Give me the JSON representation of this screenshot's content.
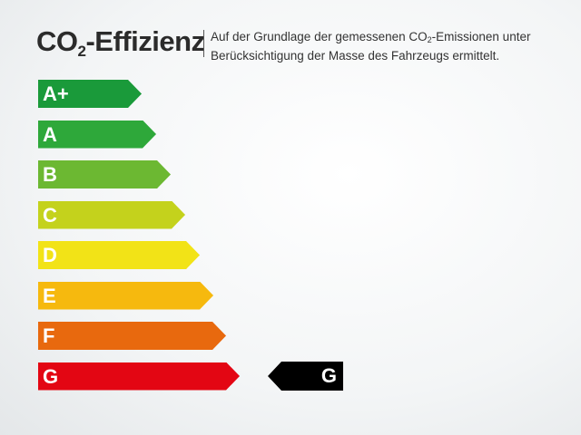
{
  "title": {
    "prefix": "CO",
    "sub": "2",
    "suffix": "-Effizienz"
  },
  "description": {
    "line1_pre": "Auf der Grundlage der gemessenen CO",
    "line1_sub": "2",
    "line1_post": "-Emissionen unter",
    "line2": "Berücksichtigung der Masse des Fahrzeugs ermittelt."
  },
  "classes": [
    {
      "label": "A+",
      "color": "#1a9a3a"
    },
    {
      "label": "A",
      "color": "#2ea83a"
    },
    {
      "label": "B",
      "color": "#6cb832"
    },
    {
      "label": "C",
      "color": "#c4d21c"
    },
    {
      "label": "D",
      "color": "#f2e317"
    },
    {
      "label": "E",
      "color": "#f6b90e"
    },
    {
      "label": "F",
      "color": "#e8690e"
    },
    {
      "label": "G",
      "color": "#e30613"
    }
  ],
  "rating": {
    "label": "G",
    "color": "#000000"
  }
}
